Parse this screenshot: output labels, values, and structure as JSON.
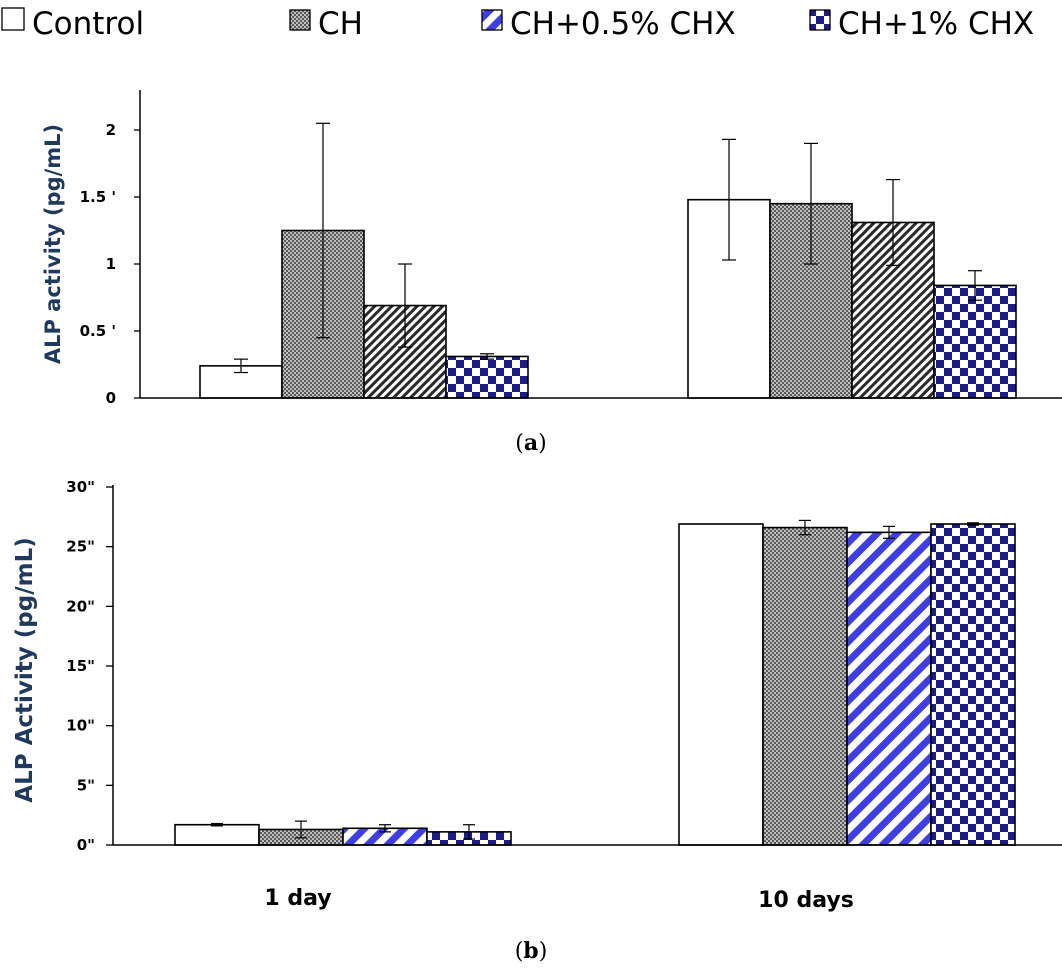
{
  "legend": [
    {
      "label": "Control",
      "pattern": "empty"
    },
    {
      "label": "CH",
      "pattern": "stipple"
    },
    {
      "label": "CH+0.5% CHX",
      "pattern": "diagonal"
    },
    {
      "label": "CH+1% CHX",
      "pattern": "checker"
    }
  ],
  "colors": {
    "navy": "#1b1b8a",
    "blue": "#3e3ee6",
    "axis_label": "#1f3a5f",
    "stipple": "#7f7f7f"
  },
  "categories": [
    "1 day",
    "10 days"
  ],
  "chart_data": [
    {
      "type": "bar",
      "panel_label": "a",
      "ylabel": "ALP activity (pg/mL)",
      "ylim": [
        0,
        2
      ],
      "yticks": [
        {
          "value": 0,
          "label": "0"
        },
        {
          "value": 0.5,
          "label": "0.5 '"
        },
        {
          "value": 1,
          "label": "1"
        },
        {
          "value": 1.5,
          "label": "1.5 '"
        },
        {
          "value": 2,
          "label": "2"
        }
      ],
      "categories": [
        "1 day",
        "10 days"
      ],
      "series": [
        {
          "name": "Control",
          "values": [
            0.24,
            1.48
          ],
          "errors": [
            0.05,
            0.45
          ]
        },
        {
          "name": "CH",
          "values": [
            1.25,
            1.45
          ],
          "errors": [
            0.8,
            0.45
          ]
        },
        {
          "name": "CH+0.5% CHX",
          "values": [
            0.69,
            1.31
          ],
          "errors": [
            0.31,
            0.32
          ]
        },
        {
          "name": "CH+1% CHX",
          "values": [
            0.31,
            0.84
          ],
          "errors": [
            0.02,
            0.11
          ]
        }
      ],
      "series_patterns": [
        "empty",
        "stipple",
        "dense-diagonal",
        "checker"
      ],
      "grid": false
    },
    {
      "type": "bar",
      "panel_label": "b",
      "ylabel": "ALP Activity (pg/mL)",
      "ylim": [
        0,
        30
      ],
      "yticks": [
        {
          "value": 0,
          "label": "0\""
        },
        {
          "value": 5,
          "label": "5\""
        },
        {
          "value": 10,
          "label": "10\""
        },
        {
          "value": 15,
          "label": "15\""
        },
        {
          "value": 20,
          "label": "20\""
        },
        {
          "value": 25,
          "label": "25\""
        },
        {
          "value": 30,
          "label": "30\""
        }
      ],
      "categories": [
        "1 day",
        "10 days"
      ],
      "series": [
        {
          "name": "Control",
          "values": [
            1.7,
            26.9
          ],
          "errors": [
            0.1,
            0.0
          ]
        },
        {
          "name": "CH",
          "values": [
            1.3,
            26.6
          ],
          "errors": [
            0.7,
            0.6
          ]
        },
        {
          "name": "CH+0.5% CHX",
          "values": [
            1.4,
            26.2
          ],
          "errors": [
            0.3,
            0.5
          ]
        },
        {
          "name": "CH+1% CHX",
          "values": [
            1.1,
            26.9
          ],
          "errors": [
            0.6,
            0.1
          ]
        }
      ],
      "series_patterns": [
        "empty",
        "stipple",
        "diagonal",
        "checker"
      ],
      "grid": false
    }
  ]
}
